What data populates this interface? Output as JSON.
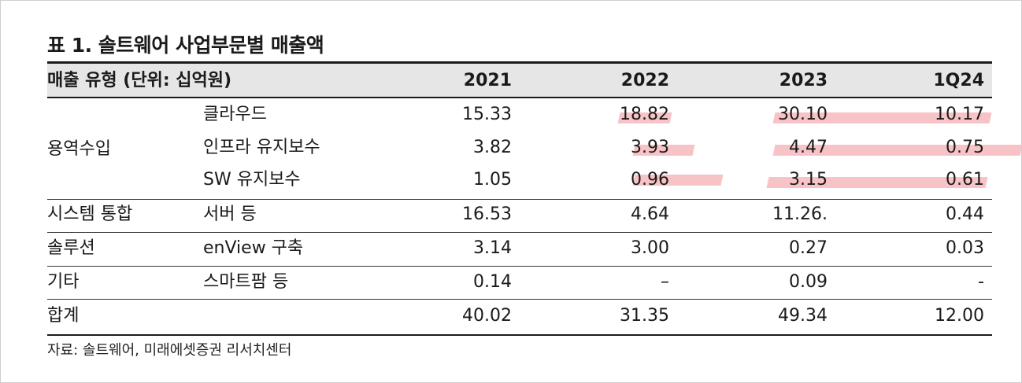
{
  "title": "표 1. 솔트웨어 사업부문별 매출액",
  "header": {
    "type_label": "매출 유형 (단위: 십억원)",
    "y2021": "2021",
    "y2022": "2022",
    "y2023": "2023",
    "q124": "1Q24"
  },
  "groups": {
    "service": "용역수입",
    "si": "시스템 통합",
    "solution": "솔루션",
    "etc": "기타",
    "total": "합계"
  },
  "rows": [
    {
      "sub": "클라우드",
      "v2021": "15.33",
      "v2022": "18.82",
      "v2023": "30.10",
      "q124": "10.17"
    },
    {
      "sub": "인프라 유지보수",
      "v2021": "3.82",
      "v2022": "3.93",
      "v2023": "4.47",
      "q124": "0.75"
    },
    {
      "sub": "SW 유지보수",
      "v2021": "1.05",
      "v2022": "0.96",
      "v2023": "3.15",
      "q124": "0.61"
    },
    {
      "sub": "서버 등",
      "v2021": "16.53",
      "v2022": "4.64",
      "v2023": "11.26.",
      "q124": "0.44"
    },
    {
      "sub": "enView 구축",
      "v2021": "3.14",
      "v2022": "3.00",
      "v2023": "0.27",
      "q124": "0.03"
    },
    {
      "sub": "스마트팜 등",
      "v2021": "0.14",
      "v2022": "–",
      "v2023": "0.09",
      "q124": "-"
    }
  ],
  "total": {
    "v2021": "40.02",
    "v2022": "31.35",
    "v2023": "49.34",
    "q124": "12.00"
  },
  "source": "자료: 솔트웨어, 미래에셋증권 리서치센터",
  "highlight_color": "#f7b8bc"
}
